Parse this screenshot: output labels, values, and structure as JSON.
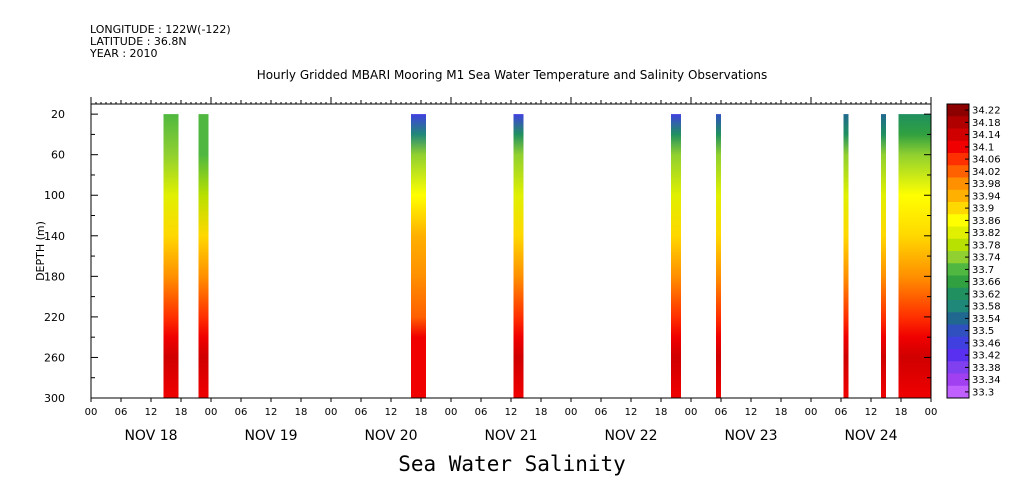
{
  "header": {
    "longitude": "LONGITUDE : 122W(-122)",
    "latitude": "LATITUDE : 36.8N",
    "year": "YEAR : 2010"
  },
  "chart_data": {
    "type": "heatmap",
    "title": "Hourly Gridded MBARI Mooring M1 Sea Water Temperature and Salinity Observations",
    "bottom_title": "Sea Water Salinity",
    "ylabel": "DEPTH (m)",
    "y_ticks": [
      20,
      60,
      100,
      140,
      180,
      220,
      260,
      300
    ],
    "ylim": [
      300,
      10
    ],
    "x_range_hours": [
      0,
      168
    ],
    "x_hour_labels": [
      "00",
      "06",
      "12",
      "18",
      "00",
      "06",
      "12",
      "18",
      "00",
      "06",
      "12",
      "18",
      "00",
      "06",
      "12",
      "18",
      "00",
      "06",
      "12",
      "18",
      "00",
      "06",
      "12",
      "18",
      "00",
      "06",
      "12",
      "18",
      "00"
    ],
    "day_labels": [
      "NOV 18",
      "NOV 19",
      "NOV 20",
      "NOV 21",
      "NOV 22",
      "NOV 23",
      "NOV 24"
    ],
    "colorbar": {
      "levels": [
        "34.22",
        "34.18",
        "34.14",
        "34.1",
        "34.06",
        "34.02",
        "33.98",
        "33.94",
        "33.9",
        "33.86",
        "33.82",
        "33.78",
        "33.74",
        "33.7",
        "33.66",
        "33.62",
        "33.58",
        "33.54",
        "33.5",
        "33.46",
        "33.42",
        "33.38",
        "33.34",
        "33.3"
      ],
      "colors": [
        "#8c0000",
        "#b00000",
        "#d00000",
        "#f00000",
        "#ff3000",
        "#ff6000",
        "#ff9000",
        "#ffb000",
        "#ffd800",
        "#ffff00",
        "#e0f000",
        "#b8e000",
        "#90d030",
        "#50b840",
        "#30a040",
        "#209060",
        "#208878",
        "#206890",
        "#3050c0",
        "#4040e0",
        "#5a30f0",
        "#8040f0",
        "#a040f0",
        "#c060ff"
      ]
    },
    "columns": [
      {
        "start_hour": 14.5,
        "end_hour": 17.5,
        "profile": [
          [
            20,
            33.7
          ],
          [
            60,
            33.74
          ],
          [
            100,
            33.82
          ],
          [
            140,
            33.9
          ],
          [
            180,
            34.0
          ],
          [
            220,
            34.06
          ],
          [
            240,
            34.12
          ],
          [
            260,
            34.14
          ],
          [
            300,
            34.1
          ]
        ]
      },
      {
        "start_hour": 21.5,
        "end_hour": 23.5,
        "profile": [
          [
            20,
            33.7
          ],
          [
            60,
            33.72
          ],
          [
            100,
            33.8
          ],
          [
            140,
            33.9
          ],
          [
            180,
            34.0
          ],
          [
            220,
            34.06
          ],
          [
            240,
            34.12
          ],
          [
            260,
            34.14
          ],
          [
            300,
            34.1
          ]
        ]
      },
      {
        "start_hour": 64.0,
        "end_hour": 67.0,
        "profile": [
          [
            20,
            33.46
          ],
          [
            40,
            33.58
          ],
          [
            60,
            33.74
          ],
          [
            100,
            33.86
          ],
          [
            140,
            33.94
          ],
          [
            180,
            34.0
          ],
          [
            220,
            34.04
          ],
          [
            240,
            34.1
          ],
          [
            260,
            34.12
          ],
          [
            300,
            34.1
          ]
        ]
      },
      {
        "start_hour": 84.5,
        "end_hour": 86.5,
        "profile": [
          [
            20,
            33.46
          ],
          [
            40,
            33.62
          ],
          [
            60,
            33.74
          ],
          [
            100,
            33.82
          ],
          [
            140,
            33.9
          ],
          [
            180,
            34.0
          ],
          [
            220,
            34.06
          ],
          [
            240,
            34.12
          ],
          [
            260,
            34.14
          ],
          [
            300,
            34.1
          ]
        ]
      },
      {
        "start_hour": 116.0,
        "end_hour": 118.0,
        "profile": [
          [
            20,
            33.48
          ],
          [
            40,
            33.62
          ],
          [
            60,
            33.74
          ],
          [
            100,
            33.82
          ],
          [
            140,
            33.9
          ],
          [
            180,
            34.0
          ],
          [
            220,
            34.06
          ],
          [
            240,
            34.12
          ],
          [
            260,
            34.14
          ],
          [
            300,
            34.1
          ]
        ]
      },
      {
        "start_hour": 125.0,
        "end_hour": 126.0,
        "profile": [
          [
            20,
            33.52
          ],
          [
            40,
            33.62
          ],
          [
            60,
            33.74
          ],
          [
            100,
            33.82
          ],
          [
            140,
            33.9
          ],
          [
            180,
            34.0
          ],
          [
            220,
            34.06
          ],
          [
            240,
            34.12
          ],
          [
            260,
            34.16
          ],
          [
            300,
            34.1
          ]
        ]
      },
      {
        "start_hour": 150.5,
        "end_hour": 151.5,
        "profile": [
          [
            20,
            33.54
          ],
          [
            40,
            33.62
          ],
          [
            60,
            33.74
          ],
          [
            100,
            33.82
          ],
          [
            140,
            33.9
          ],
          [
            180,
            34.0
          ],
          [
            220,
            34.06
          ],
          [
            240,
            34.12
          ],
          [
            260,
            34.14
          ],
          [
            300,
            34.1
          ]
        ]
      },
      {
        "start_hour": 158.0,
        "end_hour": 159.0,
        "profile": [
          [
            20,
            33.54
          ],
          [
            40,
            33.62
          ],
          [
            60,
            33.74
          ],
          [
            100,
            33.82
          ],
          [
            140,
            33.9
          ],
          [
            180,
            34.0
          ],
          [
            220,
            34.06
          ],
          [
            240,
            34.12
          ],
          [
            260,
            34.16
          ],
          [
            300,
            34.1
          ]
        ]
      },
      {
        "start_hour": 161.5,
        "end_hour": 168.0,
        "profile": [
          [
            20,
            33.62
          ],
          [
            40,
            33.66
          ],
          [
            60,
            33.74
          ],
          [
            100,
            33.86
          ],
          [
            140,
            33.9
          ],
          [
            180,
            34.0
          ],
          [
            220,
            34.06
          ],
          [
            240,
            34.12
          ],
          [
            260,
            34.14
          ],
          [
            300,
            34.1
          ]
        ]
      }
    ]
  }
}
